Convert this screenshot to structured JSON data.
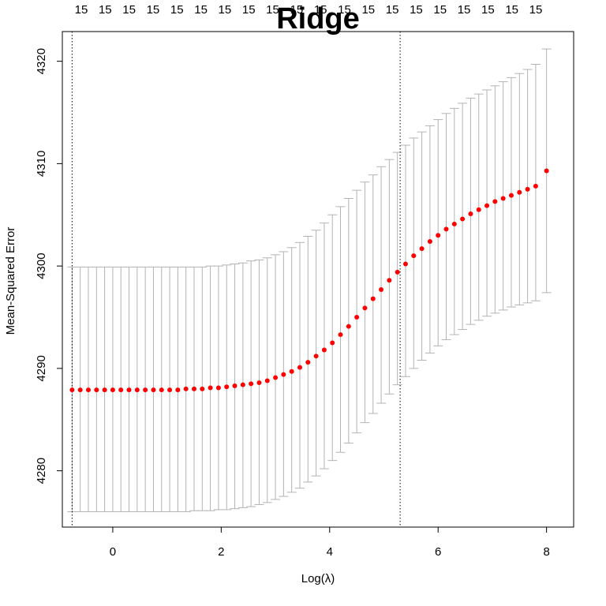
{
  "chart_data": {
    "type": "line",
    "title": "Ridge",
    "xlabel": "Log(λ)",
    "ylabel": "Mean-Squared Error",
    "xlim": [
      -0.93,
      8.5
    ],
    "ylim": [
      4274.5,
      4322.9
    ],
    "x_ticks": [
      "0",
      "2",
      "4",
      "6",
      "8"
    ],
    "y_ticks": [
      "4280",
      "4290",
      "4300",
      "4310",
      "4320"
    ],
    "top_axis_labels": [
      "15",
      "15",
      "15",
      "15",
      "15",
      "15",
      "15",
      "15",
      "15",
      "15",
      "15",
      "15",
      "15",
      "15",
      "15",
      "15",
      "15",
      "15",
      "15",
      "15"
    ],
    "vlines": [
      {
        "label": "lambda.min",
        "x": -0.75
      },
      {
        "label": "lambda.1se",
        "x": 5.3
      }
    ],
    "series": [
      {
        "x": [
          -0.75,
          -0.6,
          -0.45,
          -0.3,
          -0.15,
          0.0,
          0.15,
          0.3,
          0.45,
          0.6,
          0.75,
          0.9,
          1.05,
          1.2,
          1.35,
          1.5,
          1.65,
          1.8,
          1.95,
          2.1,
          2.25,
          2.4,
          2.55,
          2.7,
          2.85,
          3.0,
          3.15,
          3.3,
          3.45,
          3.6,
          3.75,
          3.9,
          4.05,
          4.2,
          4.35,
          4.5,
          4.65,
          4.8,
          4.95,
          5.1,
          5.25,
          5.4,
          5.55,
          5.7,
          5.85,
          6.0,
          6.15,
          6.3,
          6.45,
          6.6,
          6.75,
          6.9,
          7.05,
          7.2,
          7.35,
          7.5,
          7.65,
          7.8,
          8.0
        ],
        "y": [
          4287.9,
          4287.9,
          4287.9,
          4287.9,
          4287.9,
          4287.9,
          4287.9,
          4287.9,
          4287.9,
          4287.9,
          4287.9,
          4287.9,
          4287.9,
          4287.9,
          4288.0,
          4288.0,
          4288.0,
          4288.1,
          4288.1,
          4288.2,
          4288.3,
          4288.4,
          4288.5,
          4288.6,
          4288.8,
          4289.1,
          4289.4,
          4289.7,
          4290.1,
          4290.6,
          4291.2,
          4291.8,
          4292.5,
          4293.3,
          4294.1,
          4295.0,
          4295.9,
          4296.8,
          4297.7,
          4298.6,
          4299.4,
          4300.2,
          4301.0,
          4301.7,
          4302.4,
          4303.0,
          4303.6,
          4304.1,
          4304.6,
          4305.1,
          4305.5,
          4305.9,
          4306.3,
          4306.6,
          4306.9,
          4307.2,
          4307.5,
          4307.8,
          4309.3
        ],
        "lower": [
          4276.0,
          4276.0,
          4276.0,
          4276.0,
          4276.0,
          4276.0,
          4276.0,
          4276.0,
          4276.0,
          4276.0,
          4276.0,
          4276.0,
          4276.0,
          4276.0,
          4276.0,
          4276.1,
          4276.1,
          4276.1,
          4276.2,
          4276.2,
          4276.3,
          4276.4,
          4276.5,
          4276.7,
          4276.9,
          4277.2,
          4277.5,
          4277.9,
          4278.3,
          4278.9,
          4279.5,
          4280.2,
          4281.0,
          4281.8,
          4282.7,
          4283.7,
          4284.7,
          4285.6,
          4286.6,
          4287.5,
          4288.4,
          4289.2,
          4290.0,
          4290.8,
          4291.5,
          4292.2,
          4292.8,
          4293.3,
          4293.8,
          4294.3,
          4294.7,
          4295.1,
          4295.4,
          4295.7,
          4296.0,
          4296.2,
          4296.4,
          4296.6,
          4297.4
        ],
        "upper": [
          4299.9,
          4299.9,
          4299.9,
          4299.9,
          4299.9,
          4299.9,
          4299.9,
          4299.9,
          4299.9,
          4299.9,
          4299.9,
          4299.9,
          4299.9,
          4299.9,
          4299.9,
          4299.9,
          4299.9,
          4300.0,
          4300.0,
          4300.1,
          4300.2,
          4300.3,
          4300.5,
          4300.6,
          4300.8,
          4301.1,
          4301.4,
          4301.8,
          4302.3,
          4302.9,
          4303.5,
          4304.2,
          4305.0,
          4305.8,
          4306.6,
          4307.4,
          4308.2,
          4308.9,
          4309.7,
          4310.4,
          4311.1,
          4311.8,
          4312.5,
          4313.1,
          4313.7,
          4314.3,
          4314.9,
          4315.4,
          4315.9,
          4316.4,
          4316.8,
          4317.2,
          4317.6,
          4318.0,
          4318.4,
          4318.8,
          4319.2,
          4319.7,
          4321.2
        ]
      }
    ]
  },
  "colors": {
    "points": "#ff0000",
    "errorbars": "#b3b3b3",
    "axis": "#000000",
    "reference_lines": "#000000"
  }
}
